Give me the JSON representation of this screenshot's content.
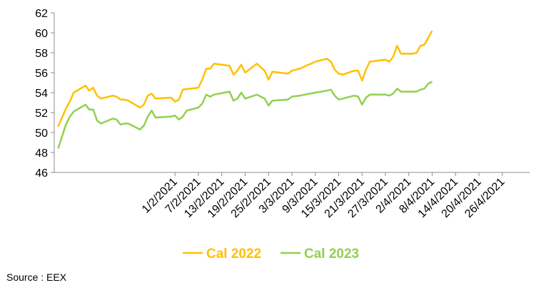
{
  "chart_data": {
    "type": "line",
    "xlabel": "",
    "ylabel": "",
    "ylim": [
      46,
      62
    ],
    "yticks": [
      46,
      48,
      50,
      52,
      54,
      56,
      58,
      60,
      62
    ],
    "xlim": [
      "2021-01-01",
      "2021-05-03"
    ],
    "xticks": [
      "1/2/2021",
      "7/2/2021",
      "13/2/2021",
      "19/2/2021",
      "25/2/2021",
      "3/3/2021",
      "9/3/2021",
      "15/3/2021",
      "21/3/2021",
      "27/3/2021",
      "2/4/2021",
      "8/4/2021",
      "14/4/2021",
      "20/4/2021",
      "26/4/2021"
    ],
    "grid": false,
    "legend": "bottom",
    "series": [
      {
        "name": "Cal 2022",
        "color": "#FFC000",
        "points": [
          [
            "2021-01-02",
            50.6
          ],
          [
            "2021-01-04",
            52.4
          ],
          [
            "2021-01-05",
            53.1
          ],
          [
            "2021-01-06",
            54.0
          ],
          [
            "2021-01-09",
            54.7
          ],
          [
            "2021-01-10",
            54.2
          ],
          [
            "2021-01-11",
            54.5
          ],
          [
            "2021-01-12",
            53.7
          ],
          [
            "2021-01-13",
            53.4
          ],
          [
            "2021-01-16",
            53.7
          ],
          [
            "2021-01-17",
            53.6
          ],
          [
            "2021-01-18",
            53.3
          ],
          [
            "2021-01-19",
            53.3
          ],
          [
            "2021-01-20",
            53.2
          ],
          [
            "2021-01-23",
            52.5
          ],
          [
            "2021-01-24",
            52.8
          ],
          [
            "2021-01-25",
            53.7
          ],
          [
            "2021-01-26",
            53.9
          ],
          [
            "2021-01-27",
            53.4
          ],
          [
            "2021-01-31",
            53.5
          ],
          [
            "2021-02-01",
            53.1
          ],
          [
            "2021-02-02",
            53.3
          ],
          [
            "2021-02-03",
            54.3
          ],
          [
            "2021-02-07",
            54.5
          ],
          [
            "2021-02-08",
            55.3
          ],
          [
            "2021-02-09",
            56.4
          ],
          [
            "2021-02-10",
            56.4
          ],
          [
            "2021-02-11",
            56.9
          ],
          [
            "2021-02-15",
            56.7
          ],
          [
            "2021-02-16",
            55.8
          ],
          [
            "2021-02-17",
            56.2
          ],
          [
            "2021-02-18",
            56.8
          ],
          [
            "2021-02-19",
            56.0
          ],
          [
            "2021-02-22",
            56.9
          ],
          [
            "2021-02-24",
            56.2
          ],
          [
            "2021-02-25",
            55.3
          ],
          [
            "2021-02-26",
            56.1
          ],
          [
            "2021-03-02",
            55.9
          ],
          [
            "2021-03-03",
            56.2
          ],
          [
            "2021-03-05",
            56.4
          ],
          [
            "2021-03-09",
            57.1
          ],
          [
            "2021-03-12",
            57.4
          ],
          [
            "2021-03-13",
            57.1
          ],
          [
            "2021-03-14",
            56.3
          ],
          [
            "2021-03-15",
            55.9
          ],
          [
            "2021-03-16",
            55.8
          ],
          [
            "2021-03-19",
            56.2
          ],
          [
            "2021-03-20",
            56.2
          ],
          [
            "2021-03-21",
            55.2
          ],
          [
            "2021-03-22",
            56.3
          ],
          [
            "2021-03-23",
            57.1
          ],
          [
            "2021-03-27",
            57.3
          ],
          [
            "2021-03-28",
            57.1
          ],
          [
            "2021-03-29",
            57.6
          ],
          [
            "2021-03-30",
            58.7
          ],
          [
            "2021-03-31",
            57.9
          ],
          [
            "2021-04-03",
            57.9
          ],
          [
            "2021-04-04",
            58.0
          ],
          [
            "2021-04-05",
            58.7
          ],
          [
            "2021-04-06",
            58.8
          ],
          [
            "2021-04-07",
            59.5
          ],
          [
            "2021-04-08",
            60.2
          ]
        ]
      },
      {
        "name": "Cal 2023",
        "color": "#92D050",
        "points": [
          [
            "2021-01-02",
            48.4
          ],
          [
            "2021-01-03",
            49.6
          ],
          [
            "2021-01-04",
            50.8
          ],
          [
            "2021-01-05",
            51.6
          ],
          [
            "2021-01-06",
            52.1
          ],
          [
            "2021-01-09",
            52.8
          ],
          [
            "2021-01-10",
            52.3
          ],
          [
            "2021-01-11",
            52.3
          ],
          [
            "2021-01-12",
            51.2
          ],
          [
            "2021-01-13",
            50.9
          ],
          [
            "2021-01-16",
            51.4
          ],
          [
            "2021-01-17",
            51.3
          ],
          [
            "2021-01-18",
            50.8
          ],
          [
            "2021-01-19",
            50.9
          ],
          [
            "2021-01-20",
            50.9
          ],
          [
            "2021-01-23",
            50.3
          ],
          [
            "2021-01-24",
            50.7
          ],
          [
            "2021-01-25",
            51.6
          ],
          [
            "2021-01-26",
            52.2
          ],
          [
            "2021-01-27",
            51.5
          ],
          [
            "2021-01-31",
            51.6
          ],
          [
            "2021-02-01",
            51.7
          ],
          [
            "2021-02-02",
            51.3
          ],
          [
            "2021-02-03",
            51.6
          ],
          [
            "2021-02-04",
            52.2
          ],
          [
            "2021-02-07",
            52.5
          ],
          [
            "2021-02-08",
            52.9
          ],
          [
            "2021-02-09",
            53.8
          ],
          [
            "2021-02-10",
            53.6
          ],
          [
            "2021-02-11",
            53.8
          ],
          [
            "2021-02-15",
            54.1
          ],
          [
            "2021-02-16",
            53.2
          ],
          [
            "2021-02-17",
            53.4
          ],
          [
            "2021-02-18",
            54.0
          ],
          [
            "2021-02-19",
            53.4
          ],
          [
            "2021-02-22",
            53.8
          ],
          [
            "2021-02-24",
            53.4
          ],
          [
            "2021-02-25",
            52.7
          ],
          [
            "2021-02-26",
            53.2
          ],
          [
            "2021-03-02",
            53.3
          ],
          [
            "2021-03-03",
            53.6
          ],
          [
            "2021-03-05",
            53.7
          ],
          [
            "2021-03-09",
            54.0
          ],
          [
            "2021-03-12",
            54.2
          ],
          [
            "2021-03-13",
            54.3
          ],
          [
            "2021-03-14",
            53.7
          ],
          [
            "2021-03-15",
            53.3
          ],
          [
            "2021-03-16",
            53.4
          ],
          [
            "2021-03-19",
            53.7
          ],
          [
            "2021-03-20",
            53.6
          ],
          [
            "2021-03-21",
            52.8
          ],
          [
            "2021-03-22",
            53.5
          ],
          [
            "2021-03-23",
            53.8
          ],
          [
            "2021-03-27",
            53.8
          ],
          [
            "2021-03-28",
            53.7
          ],
          [
            "2021-03-29",
            53.9
          ],
          [
            "2021-03-30",
            54.4
          ],
          [
            "2021-03-31",
            54.1
          ],
          [
            "2021-04-03",
            54.1
          ],
          [
            "2021-04-04",
            54.1
          ],
          [
            "2021-04-05",
            54.3
          ],
          [
            "2021-04-06",
            54.4
          ],
          [
            "2021-04-07",
            54.9
          ],
          [
            "2021-04-08",
            55.1
          ]
        ]
      }
    ]
  },
  "source": "Source : EEX"
}
